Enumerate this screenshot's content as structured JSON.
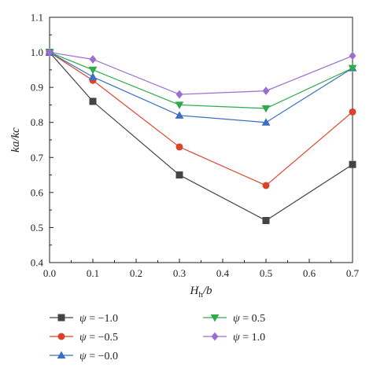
{
  "chart_data": {
    "type": "line",
    "xlabel": {
      "main": "H",
      "sub": "h",
      "tail": "/b"
    },
    "ylabel": "ka/kc",
    "xlim": [
      0.0,
      0.7
    ],
    "ylim": [
      0.4,
      1.1
    ],
    "xticks": [
      0.0,
      0.1,
      0.2,
      0.3,
      0.4,
      0.5,
      0.6,
      0.7
    ],
    "xtick_labels": [
      "0.0",
      "0.1",
      "0.2",
      "0.3",
      "0.4",
      "0.5",
      "0.6",
      "0.7"
    ],
    "yticks": [
      0.4,
      0.5,
      0.6,
      0.7,
      0.8,
      0.9,
      1.0,
      1.1
    ],
    "ytick_labels": [
      "0.4",
      "0.5",
      "0.6",
      "0.7",
      "0.8",
      "0.9",
      "1.0",
      "1.1"
    ],
    "grid": false,
    "legend_position": "bottom",
    "x": [
      0.0,
      0.1,
      0.3,
      0.5,
      0.7
    ],
    "series": [
      {
        "name": "ψ = −1.0",
        "symbol": "ψ",
        "value_label": " = −1.0",
        "color": "#444444",
        "marker": "square",
        "values": [
          1.0,
          0.86,
          0.65,
          0.52,
          0.68
        ]
      },
      {
        "name": "ψ = −0.5",
        "symbol": "ψ",
        "value_label": " = −0.5",
        "color": "#d9432a",
        "marker": "circle",
        "values": [
          1.0,
          0.92,
          0.73,
          0.62,
          0.83
        ]
      },
      {
        "name": "ψ = −0.0",
        "symbol": "ψ",
        "value_label": " = −0.0",
        "color": "#3a6fc4",
        "marker": "triangle-up",
        "values": [
          1.0,
          0.93,
          0.82,
          0.8,
          0.955
        ]
      },
      {
        "name": "ψ = 0.5",
        "symbol": "ψ",
        "value_label": " = 0.5",
        "color": "#2eaa4a",
        "marker": "triangle-down",
        "values": [
          1.0,
          0.95,
          0.85,
          0.84,
          0.955
        ]
      },
      {
        "name": "ψ = 1.0",
        "symbol": "ψ",
        "value_label": " = 1.0",
        "color": "#9b6fd0",
        "marker": "diamond",
        "values": [
          1.0,
          0.98,
          0.88,
          0.89,
          0.99
        ]
      }
    ]
  }
}
